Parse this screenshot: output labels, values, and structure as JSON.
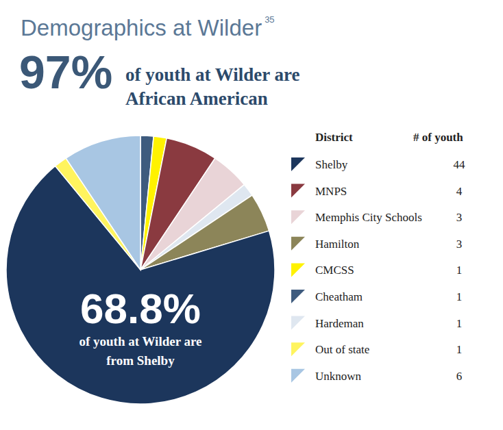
{
  "chart_data": {
    "type": "pie",
    "title": "Demographics at Wilder",
    "footnote_ref": "35",
    "headline": {
      "text": "97%",
      "lines": [
        "of youth at Wilder are",
        "African American"
      ]
    },
    "annotation": {
      "text": "68.8%",
      "lines": [
        "of youth at Wilder are",
        "from Shelby"
      ]
    },
    "legend_headers": [
      "District",
      "# of youth"
    ],
    "categories": [
      "Shelby",
      "MNPS",
      "Memphis City Schools",
      "Hamilton",
      "CMCSS",
      "Cheatham",
      "Hardeman",
      "Out of state",
      "Unknown"
    ],
    "values": [
      44,
      4,
      3,
      3,
      1,
      1,
      1,
      1,
      6
    ],
    "colors": [
      "#1c365c",
      "#8a3a40",
      "#e9d4d7",
      "#8c8559",
      "#fff200",
      "#3e5b7e",
      "#dfe7f0",
      "#fff45e",
      "#a8c6e3"
    ],
    "legend": "right"
  }
}
